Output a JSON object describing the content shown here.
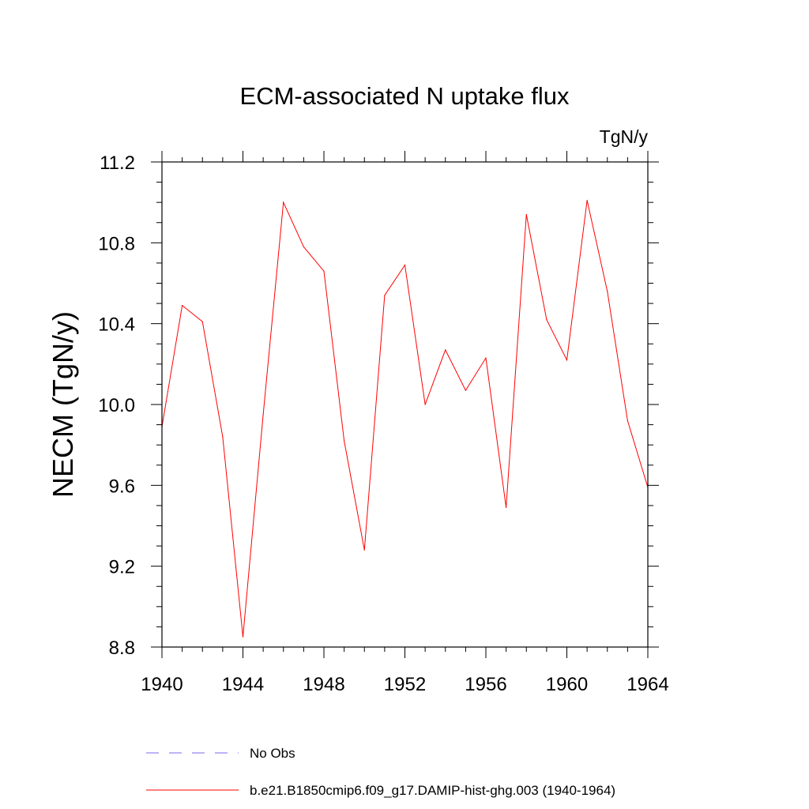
{
  "chart_data": {
    "type": "line",
    "title": "ECM-associated N uptake flux",
    "units": "TgN/y",
    "ylabel": "NECM  (TgN/y)",
    "xlabel": "",
    "xlim": [
      1940,
      1964
    ],
    "ylim": [
      8.8,
      11.2
    ],
    "x_ticks": [
      1940,
      1944,
      1948,
      1952,
      1956,
      1960,
      1964
    ],
    "x_tick_labels": [
      "1940",
      "1944",
      "1948",
      "1952",
      "1956",
      "1960",
      "1964"
    ],
    "y_ticks": [
      8.8,
      9.2,
      9.6,
      10.0,
      10.4,
      10.8,
      11.2
    ],
    "y_tick_labels": [
      "8.8",
      "9.2",
      "9.6",
      "10.0",
      "10.4",
      "10.8",
      "11.2"
    ],
    "grid": false,
    "legend_position": "bottom",
    "x": [
      1940,
      1941,
      1942,
      1943,
      1944,
      1945,
      1946,
      1947,
      1948,
      1949,
      1950,
      1951,
      1952,
      1953,
      1954,
      1955,
      1956,
      1957,
      1958,
      1959,
      1960,
      1961,
      1962,
      1963,
      1964
    ],
    "series": [
      {
        "name": "b.e21.B1850cmip6.f09_g17.DAMIP-hist-ghg.003 (1940-1964)",
        "color": "#ff0000",
        "style": "solid",
        "values": [
          9.89,
          10.49,
          10.41,
          9.84,
          8.85,
          9.95,
          11.0,
          10.78,
          10.66,
          9.82,
          9.28,
          10.54,
          10.69,
          10.0,
          10.27,
          10.07,
          10.23,
          9.49,
          10.94,
          10.42,
          10.22,
          11.01,
          10.56,
          9.92,
          9.59
        ]
      }
    ],
    "legend": [
      {
        "label": "No Obs",
        "color": "#7b68ee",
        "style": "dashed"
      },
      {
        "label": "b.e21.B1850cmip6.f09_g17.DAMIP-hist-ghg.003 (1940-1964)",
        "color": "#ff0000",
        "style": "solid"
      }
    ]
  }
}
